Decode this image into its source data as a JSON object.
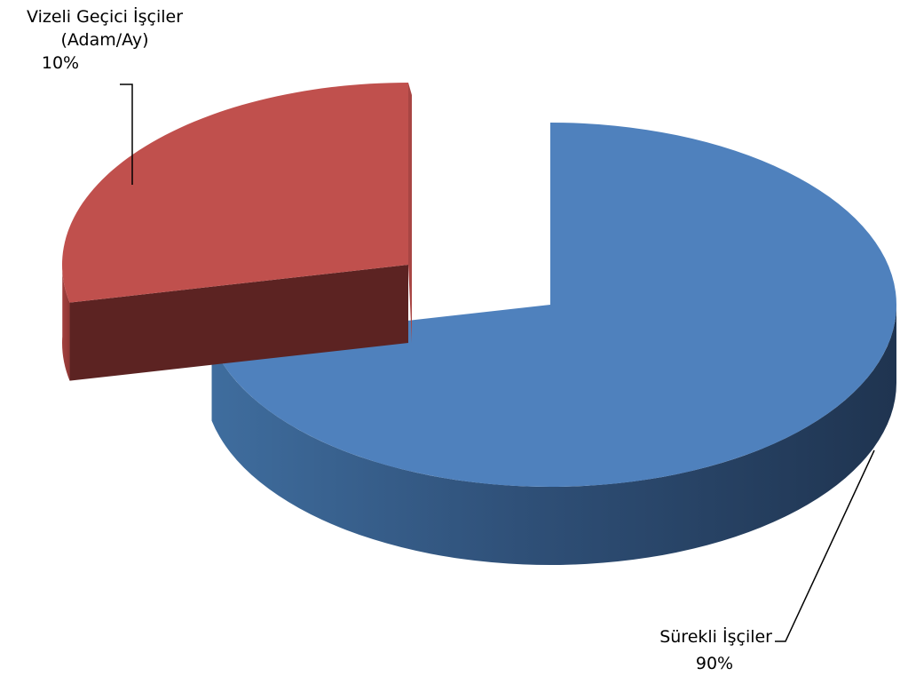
{
  "chart_data": {
    "type": "pie",
    "style": "3d-exploded",
    "categories": [
      "Vizeli Geçici İşçiler (Adam/Ay)",
      "Sürekli İşçiler"
    ],
    "values": [
      10,
      90
    ],
    "unit": "%",
    "slices": [
      {
        "label_line1": "Vizeli Geçici İşçiler",
        "label_line2": "(Adam/Ay)",
        "value_label": "10%",
        "color": "#C0504D"
      },
      {
        "label_line1": "Sürekli İşçiler",
        "value_label": "90%",
        "color": "#4F81BD"
      }
    ],
    "legend": "none",
    "grid": false
  }
}
